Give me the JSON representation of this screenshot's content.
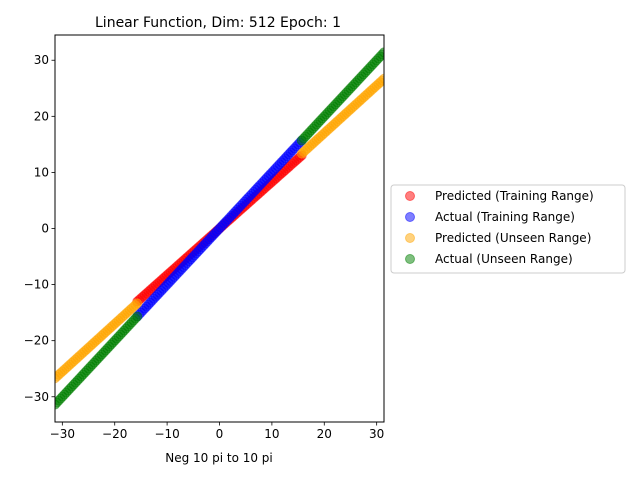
{
  "chart_data": {
    "type": "scatter",
    "title": "Linear Function, Dim: 512 Epoch: 1",
    "xlabel": "Neg 10 pi to 10 pi",
    "ylabel": "",
    "xlim": [
      -31.4,
      31.4
    ],
    "ylim": [
      -34.5,
      34.5
    ],
    "xticks": [
      -30,
      -20,
      -10,
      0,
      10,
      20,
      30
    ],
    "yticks": [
      -30,
      -20,
      -10,
      0,
      10,
      20,
      30
    ],
    "grid": false,
    "legend_position": "center-right (outside plot)",
    "series": [
      {
        "name": "Predicted (Training Range)",
        "color": "#ff0000",
        "alpha": 0.5,
        "x_range": [
          -15.7,
          15.7
        ],
        "slope": 0.83,
        "intercept": 0,
        "count": 90
      },
      {
        "name": "Actual (Training Range)",
        "color": "#0000ff",
        "alpha": 0.5,
        "x_range": [
          -15.7,
          15.7
        ],
        "slope": 1.0,
        "intercept": 0,
        "count": 90
      },
      {
        "name": "Predicted (Unseen Range)",
        "color": "#ffa500",
        "alpha": 0.5,
        "x_ranges": [
          [
            -31.4,
            -15.7
          ],
          [
            15.7,
            31.4
          ]
        ],
        "slope": 0.85,
        "intercept": 0,
        "count": 45
      },
      {
        "name": "Actual (Unseen Range)",
        "color": "#008000",
        "alpha": 0.5,
        "x_ranges": [
          [
            -31.4,
            -15.7
          ],
          [
            15.7,
            31.4
          ]
        ],
        "slope": 1.0,
        "intercept": 0,
        "count": 45
      }
    ]
  }
}
